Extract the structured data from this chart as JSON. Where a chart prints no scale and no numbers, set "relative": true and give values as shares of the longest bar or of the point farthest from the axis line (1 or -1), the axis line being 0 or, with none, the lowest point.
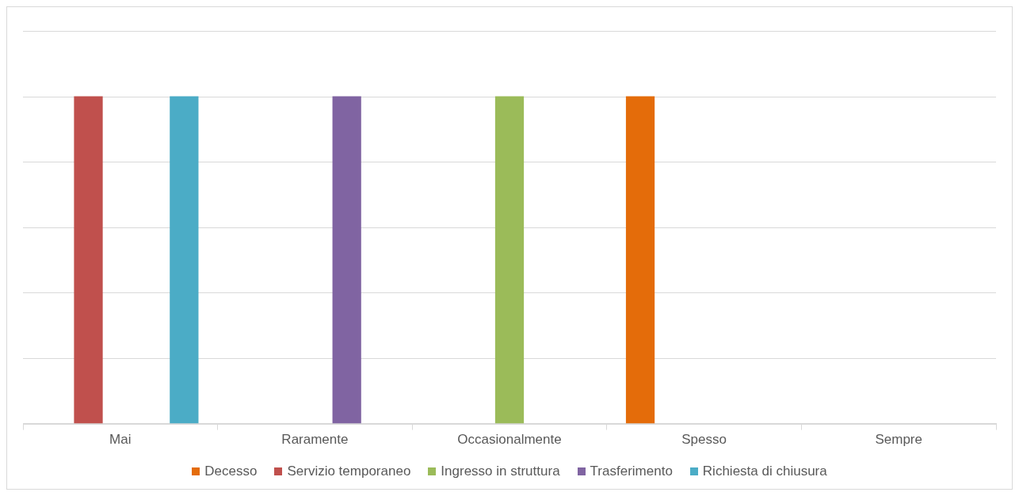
{
  "chart_data": {
    "type": "bar",
    "relative": true,
    "categories": [
      "Mai",
      "Raramente",
      "Occasionalmente",
      "Spesso",
      "Sempre"
    ],
    "series": [
      {
        "name": "Decesso",
        "color": "#e46c0a",
        "values": [
          0,
          0,
          0,
          1,
          0
        ]
      },
      {
        "name": "Servizio temporaneo",
        "color": "#c0504d",
        "values": [
          1,
          0,
          0,
          0,
          0
        ]
      },
      {
        "name": "Ingresso in struttura",
        "color": "#9bbb59",
        "values": [
          0,
          0,
          1,
          0,
          0
        ]
      },
      {
        "name": "Trasferimento",
        "color": "#8064a2",
        "values": [
          0,
          1,
          0,
          0,
          0
        ]
      },
      {
        "name": "Richiesta di chiusura",
        "color": "#4bacc6",
        "values": [
          1,
          0,
          0,
          0,
          0
        ]
      }
    ],
    "grid": "y",
    "legend": "bottom"
  }
}
